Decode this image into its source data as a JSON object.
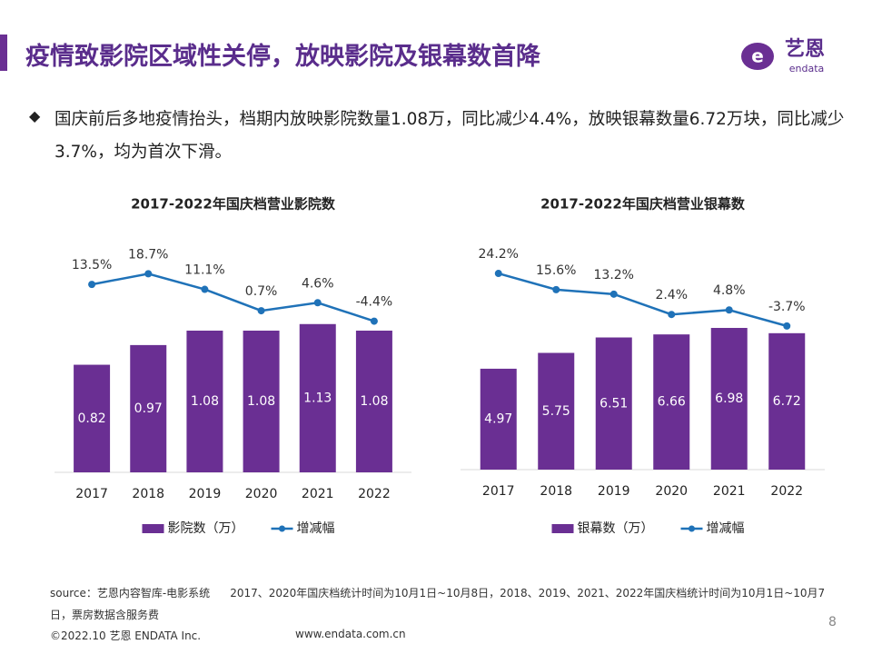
{
  "header": {
    "title": "疫情致影院区域性关停，放映影院及银幕数首降",
    "logo": "艺恩",
    "logo_sub": "endata"
  },
  "bullet": "国庆前后多地疫情抬头，档期内放映影院数量1.08万，同比减少4.4%，放映银幕数量6.72万块，同比减少3.7%，均为首次下滑。",
  "chart_data": [
    {
      "type": "bar",
      "title": "2017-2022年国庆档营业影院数",
      "categories": [
        "2017",
        "2018",
        "2019",
        "2020",
        "2021",
        "2022"
      ],
      "series": [
        {
          "name": "影院数（万）",
          "type": "bar",
          "color": "#6a2f93",
          "values": [
            0.82,
            0.97,
            1.08,
            1.08,
            1.13,
            1.08
          ]
        },
        {
          "name": "增减幅",
          "type": "line",
          "axis": "y2",
          "color": "#1f72b8",
          "values": [
            13.5,
            18.7,
            11.1,
            0.7,
            4.6,
            -4.4
          ],
          "value_labels": [
            "13.5%",
            "18.7%",
            "11.1%",
            "0.7%",
            "4.6%",
            "-4.4%"
          ]
        }
      ],
      "ylim": [
        0,
        1.8
      ],
      "y2lim": [
        -78,
        37
      ]
    },
    {
      "type": "bar",
      "title": "2017-2022年国庆档营业银幕数",
      "categories": [
        "2017",
        "2018",
        "2019",
        "2020",
        "2021",
        "2022"
      ],
      "series": [
        {
          "name": "银幕数（万）",
          "type": "bar",
          "color": "#6a2f93",
          "values": [
            4.97,
            5.75,
            6.51,
            6.66,
            6.98,
            6.72
          ]
        },
        {
          "name": "增减幅",
          "type": "line",
          "axis": "y2",
          "color": "#1f72b8",
          "values": [
            24.2,
            15.6,
            13.2,
            2.4,
            4.8,
            -3.7
          ],
          "value_labels": [
            "24.2%",
            "15.6%",
            "13.2%",
            "2.4%",
            "4.8%",
            "-3.7%"
          ]
        }
      ],
      "ylim": [
        0,
        11.5
      ],
      "y2lim": [
        -80,
        44
      ]
    }
  ],
  "source": "source：艺恩内容智库-电影系统",
  "note": "2017、2020年国庆档统计时间为10月1日~10月8日，2018、2019、2021、2022年国庆档统计时间为10月1日~10月7日，票房数据含服务费",
  "footer": {
    "copyright": "©2022.10 艺恩 ENDATA Inc.",
    "url": "www.endata.com.cn",
    "page": "8"
  }
}
